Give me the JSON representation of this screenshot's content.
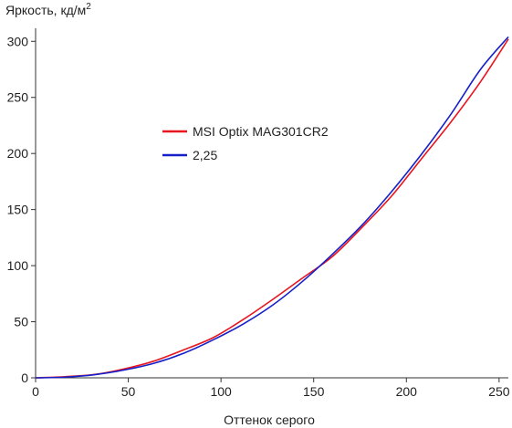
{
  "chart_data": {
    "type": "line",
    "title": "",
    "xlabel": "Оттенок серого",
    "ylabel": "Яркость, кд/м",
    "ylabel_superscript": "2",
    "xlim": [
      0,
      255
    ],
    "ylim": [
      0,
      310
    ],
    "x_ticks": [
      0,
      50,
      100,
      150,
      200,
      250
    ],
    "y_ticks": [
      0,
      50,
      100,
      150,
      200,
      250,
      300
    ],
    "grid": false,
    "legend_position": "center-left",
    "series": [
      {
        "name": "MSI Optix MAG301CR2",
        "color": "#e8141e",
        "x": [
          0,
          16,
          32,
          48,
          64,
          80,
          96,
          112,
          128,
          144,
          160,
          176,
          192,
          208,
          224,
          240,
          255
        ],
        "y": [
          0,
          1,
          3,
          8,
          15,
          25,
          36,
          52,
          70,
          89,
          108,
          134,
          162,
          195,
          228,
          264,
          302
        ]
      },
      {
        "name": "2,25",
        "color": "#1620c8",
        "x": [
          0,
          16,
          32,
          48,
          64,
          80,
          96,
          112,
          128,
          144,
          160,
          176,
          192,
          208,
          224,
          240,
          255
        ],
        "y": [
          0,
          0.6,
          2.8,
          7,
          13,
          22,
          34,
          48,
          65,
          86,
          110,
          136,
          166,
          199,
          235,
          275,
          304
        ]
      }
    ]
  }
}
